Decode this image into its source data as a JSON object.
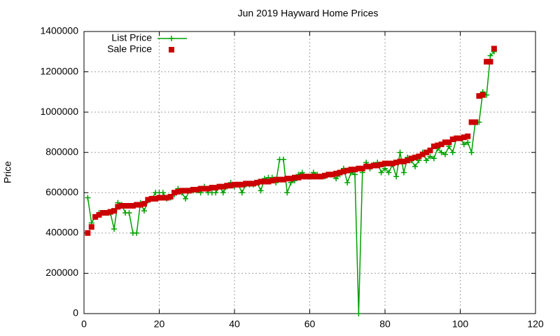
{
  "chart_data": {
    "type": "line",
    "title": "Jun 2019 Hayward Home Prices",
    "y_label": "Price",
    "xlim": [
      0,
      120
    ],
    "xticks": [
      0,
      20,
      40,
      60,
      80,
      100,
      120
    ],
    "ylim": [
      0,
      1400000
    ],
    "yticks": [
      0,
      200000,
      400000,
      600000,
      800000,
      1000000,
      1200000,
      1400000
    ],
    "grid": true,
    "legend": "top-left",
    "x": [
      1,
      2,
      3,
      4,
      5,
      6,
      7,
      8,
      9,
      10,
      11,
      12,
      13,
      14,
      15,
      16,
      17,
      18,
      19,
      20,
      21,
      22,
      23,
      24,
      25,
      26,
      27,
      28,
      29,
      30,
      31,
      32,
      33,
      34,
      35,
      36,
      37,
      38,
      39,
      40,
      41,
      42,
      43,
      44,
      45,
      46,
      47,
      48,
      49,
      50,
      51,
      52,
      53,
      54,
      55,
      56,
      57,
      58,
      59,
      60,
      61,
      62,
      63,
      64,
      65,
      66,
      67,
      68,
      69,
      70,
      71,
      72,
      73,
      74,
      75,
      76,
      77,
      78,
      79,
      80,
      81,
      82,
      83,
      84,
      85,
      86,
      87,
      88,
      89,
      90,
      91,
      92,
      93,
      94,
      95,
      96,
      97,
      98,
      99,
      100,
      101,
      102,
      103,
      104,
      105,
      106,
      107,
      108,
      109
    ],
    "series": [
      {
        "name": "List Price",
        "color": "#00a000",
        "marker": "plus",
        "line": true,
        "values": [
          575000,
          450000,
          480000,
          500000,
          500000,
          500000,
          500000,
          420000,
          550000,
          540000,
          500000,
          500000,
          400000,
          400000,
          550000,
          510000,
          560000,
          570000,
          600000,
          600000,
          600000,
          570000,
          575000,
          590000,
          620000,
          600000,
          570000,
          610000,
          610000,
          610000,
          600000,
          630000,
          600000,
          600000,
          600000,
          630000,
          600000,
          630000,
          650000,
          630000,
          640000,
          600000,
          640000,
          640000,
          640000,
          650000,
          610000,
          670000,
          675000,
          675000,
          650000,
          765000,
          765000,
          600000,
          650000,
          660000,
          690000,
          700000,
          680000,
          680000,
          700000,
          690000,
          680000,
          680000,
          690000,
          690000,
          670000,
          690000,
          720000,
          650000,
          700000,
          690000,
          0,
          700000,
          750000,
          720000,
          740000,
          750000,
          700000,
          720000,
          700000,
          740000,
          680000,
          800000,
          700000,
          775000,
          760000,
          730000,
          760000,
          800000,
          760000,
          780000,
          770000,
          820000,
          800000,
          790000,
          830000,
          800000,
          870000,
          870000,
          840000,
          850000,
          800000,
          950000,
          950000,
          1100000,
          1085000,
          1280000,
          1300000
        ]
      },
      {
        "name": "Sale Price",
        "color": "#cc0000",
        "marker": "square",
        "line": false,
        "values": [
          400000,
          430000,
          480000,
          490000,
          500000,
          500000,
          505000,
          510000,
          530000,
          535000,
          535000,
          535000,
          535000,
          540000,
          540000,
          545000,
          565000,
          570000,
          570000,
          575000,
          575000,
          575000,
          580000,
          600000,
          605000,
          610000,
          610000,
          610000,
          615000,
          615000,
          620000,
          620000,
          620000,
          625000,
          625000,
          630000,
          630000,
          635000,
          635000,
          640000,
          640000,
          640000,
          645000,
          645000,
          645000,
          650000,
          655000,
          655000,
          655000,
          660000,
          665000,
          665000,
          665000,
          670000,
          670000,
          675000,
          675000,
          680000,
          680000,
          680000,
          680000,
          680000,
          680000,
          685000,
          690000,
          690000,
          695000,
          700000,
          705000,
          710000,
          715000,
          715000,
          720000,
          720000,
          730000,
          730000,
          735000,
          735000,
          740000,
          745000,
          745000,
          745000,
          750000,
          755000,
          755000,
          760000,
          770000,
          775000,
          780000,
          790000,
          800000,
          810000,
          830000,
          835000,
          840000,
          850000,
          850000,
          865000,
          870000,
          870000,
          875000,
          880000,
          950000,
          950000,
          1080000,
          1085000,
          1250000,
          1250000,
          1315000
        ]
      }
    ]
  }
}
